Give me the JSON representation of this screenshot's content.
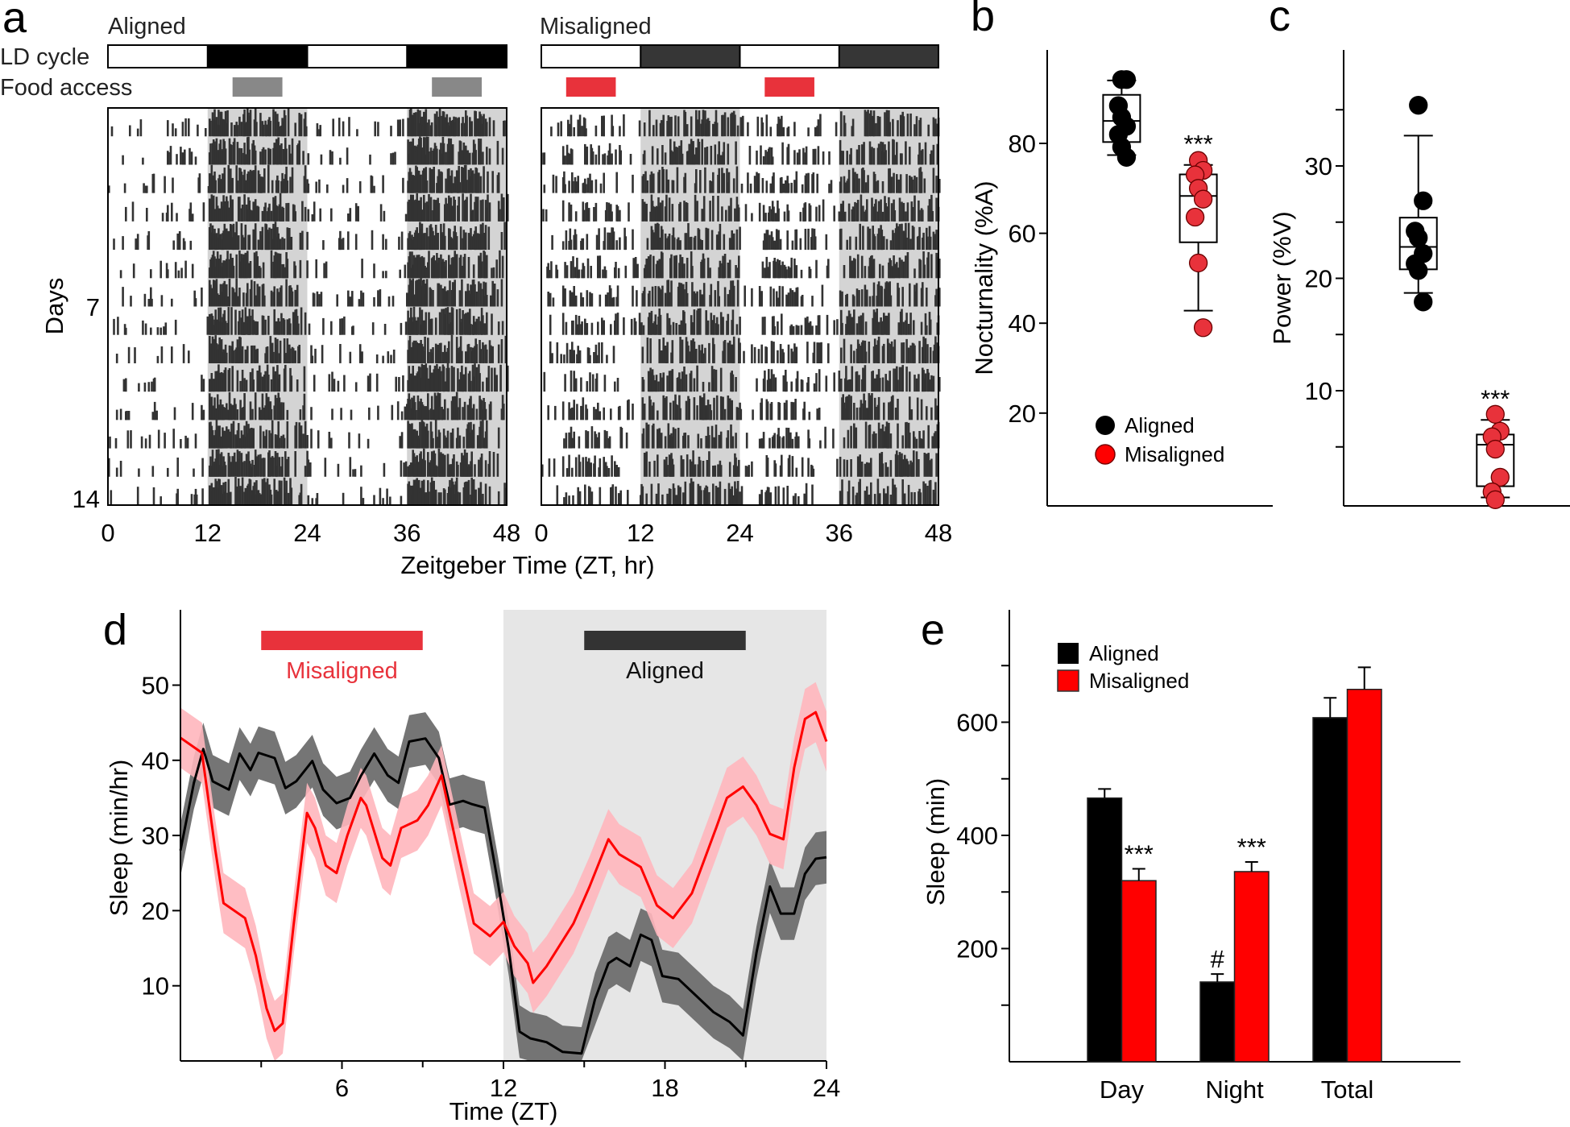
{
  "figure": {
    "panel_letters": [
      "a",
      "b",
      "c",
      "d",
      "e"
    ]
  },
  "colors": {
    "aligned": "#000000",
    "misaligned": "#ff0000",
    "misaligned_marker": "#e8323b",
    "aligned_band": "#6e6e6e",
    "misaligned_band": "#ffb6bd",
    "dark_phase_shade": "#d4d4d4",
    "night_shade": "#e6e6e6",
    "food_aligned": "#888888",
    "food_misaligned": "#e8323b",
    "ld_dark_aligned": "#000000",
    "ld_dark_misaligned": "#363636"
  },
  "chart_data": [
    {
      "id": "a",
      "type": "heatmap",
      "subtype": "double-plotted actogram",
      "row_labels": {
        "ld": "LD cycle",
        "food": "Food access"
      },
      "xlabel": "Zeitgeber Time (ZT, hr)",
      "ylabel": "Days",
      "x_ticks": [
        0,
        12,
        24,
        36,
        48
      ],
      "y_ticks": [
        7,
        14
      ],
      "days": 14,
      "panels": [
        {
          "name": "Aligned",
          "x_range": [
            0,
            48
          ],
          "ld_dark_hours": [
            [
              12,
              24
            ],
            [
              36,
              48
            ]
          ],
          "food_access_hours": [
            [
              15,
              21
            ],
            [
              39,
              45
            ]
          ],
          "activity_concentrated": "dark phase"
        },
        {
          "name": "Misaligned",
          "x_range": [
            0,
            48
          ],
          "ld_dark_hours": [
            [
              12,
              24
            ],
            [
              36,
              48
            ]
          ],
          "food_access_hours": [
            [
              3,
              9
            ],
            [
              27,
              33
            ]
          ],
          "activity_concentrated": "spread across light and dark phase"
        }
      ]
    },
    {
      "id": "b",
      "type": "scatter",
      "subtype": "box plot with points",
      "ylabel": "Nocturnality (%A)",
      "ylim": [
        0,
        100
      ],
      "y_ticks": [
        20,
        40,
        60,
        80
      ],
      "legend": [
        "Aligned",
        "Misaligned"
      ],
      "legend_position": "bottom-center",
      "groups": [
        {
          "name": "Aligned",
          "points": [
            94.2,
            94.2,
            88.4,
            85.8,
            83.8,
            82,
            79.2,
            76.9
          ],
          "box": {
            "whisker_low": 77.4,
            "q1": 80.3,
            "median": 85,
            "q3": 90.8,
            "whisker_high": 94
          },
          "annotation": ""
        },
        {
          "name": "Misaligned",
          "points": [
            76.2,
            74,
            73,
            70,
            67.6,
            63.6,
            53.4,
            39
          ],
          "box": {
            "whisker_low": 42.8,
            "q1": 58,
            "median": 68.3,
            "q3": 73.1,
            "whisker_high": 75.2
          },
          "annotation": "***"
        }
      ]
    },
    {
      "id": "c",
      "type": "scatter",
      "subtype": "box plot with points",
      "ylabel": "Power (%V)",
      "ylim": [
        0,
        37
      ],
      "y_ticks": [
        10,
        20,
        30
      ],
      "y_minor_ticks": [
        5,
        15,
        25,
        35
      ],
      "groups": [
        {
          "name": "Aligned",
          "points": [
            35.4,
            26.9,
            24.2,
            23.6,
            22.2,
            21.3,
            20.7,
            17.9
          ],
          "box": {
            "whisker_low": 18.7,
            "q1": 20.8,
            "median": 22.8,
            "q3": 25.4,
            "whisker_high": 32.7
          },
          "annotation": ""
        },
        {
          "name": "Misaligned",
          "points": [
            7.9,
            6.4,
            5.9,
            4.8,
            2.3,
            1.0,
            0.3
          ],
          "box": {
            "whisker_low": 0.5,
            "q1": 1.5,
            "median": 5.2,
            "q3": 6.1,
            "whisker_high": 7.4
          },
          "annotation": "***"
        }
      ]
    },
    {
      "id": "d",
      "type": "line",
      "xlabel": "Time (ZT)",
      "ylabel": "Sleep (min/hr)",
      "xlim": [
        0,
        24
      ],
      "ylim": [
        0,
        57
      ],
      "x_ticks": [
        6,
        12,
        18,
        24
      ],
      "x_minor_ticks": [
        3,
        9,
        15,
        21
      ],
      "y_ticks": [
        10,
        20,
        30,
        40,
        50
      ],
      "shaded_region": {
        "from": 12,
        "to": 24,
        "meaning": "dark phase"
      },
      "annotations": [
        {
          "label": "Misaligned",
          "from": 3,
          "to": 9,
          "color": "misaligned_marker"
        },
        {
          "label": "Aligned",
          "from": 15,
          "to": 21,
          "color": "#333333"
        }
      ],
      "series": [
        {
          "name": "Aligned",
          "band_halfwidth": 3.5,
          "points": [
            [
              0,
              28
            ],
            [
              0.5,
              37
            ],
            [
              0.85,
              41.5
            ],
            [
              1.2,
              37.2
            ],
            [
              1.8,
              36.1
            ],
            [
              2.2,
              40.9
            ],
            [
              2.6,
              38.7
            ],
            [
              2.9,
              41
            ],
            [
              3.5,
              40.3
            ],
            [
              3.9,
              36.3
            ],
            [
              4.3,
              37.2
            ],
            [
              4.9,
              39.9
            ],
            [
              5.3,
              36.1
            ],
            [
              5.8,
              34.3
            ],
            [
              6.3,
              35
            ],
            [
              6.7,
              37.9
            ],
            [
              7.2,
              40.9
            ],
            [
              7.7,
              38
            ],
            [
              8.1,
              37
            ],
            [
              8.5,
              42.5
            ],
            [
              9.1,
              42.9
            ],
            [
              9.6,
              40.3
            ],
            [
              10,
              34.1
            ],
            [
              10.5,
              34.6
            ],
            [
              10.8,
              34.2
            ],
            [
              11.3,
              33.7
            ],
            [
              11.8,
              23.6
            ],
            [
              12.2,
              14.8
            ],
            [
              12.6,
              3.9
            ],
            [
              13,
              3
            ],
            [
              13.6,
              2.5
            ],
            [
              14.2,
              1.2
            ],
            [
              14.9,
              1
            ],
            [
              15.4,
              8.2
            ],
            [
              15.9,
              13
            ],
            [
              16.2,
              13.7
            ],
            [
              16.7,
              12.6
            ],
            [
              17.1,
              16.8
            ],
            [
              17.5,
              16.1
            ],
            [
              17.9,
              11.3
            ],
            [
              18.5,
              10.9
            ],
            [
              19.3,
              8.2
            ],
            [
              19.8,
              6.5
            ],
            [
              20.4,
              5.2
            ],
            [
              20.9,
              3.4
            ],
            [
              21.4,
              14.4
            ],
            [
              21.9,
              23.2
            ],
            [
              22.3,
              19.6
            ],
            [
              22.8,
              19.6
            ],
            [
              23.2,
              24.9
            ],
            [
              23.6,
              26.9
            ],
            [
              24,
              27.1
            ]
          ]
        },
        {
          "name": "Misaligned",
          "band_halfwidth": 4,
          "points": [
            [
              0,
              43
            ],
            [
              0.8,
              41
            ],
            [
              1.3,
              28
            ],
            [
              1.6,
              21
            ],
            [
              2.4,
              19
            ],
            [
              2.8,
              14
            ],
            [
              3.2,
              7
            ],
            [
              3.5,
              4
            ],
            [
              3.8,
              5
            ],
            [
              4.2,
              18
            ],
            [
              4.7,
              33
            ],
            [
              5,
              31
            ],
            [
              5.4,
              26
            ],
            [
              5.8,
              25
            ],
            [
              6.2,
              30
            ],
            [
              6.7,
              35
            ],
            [
              6.9,
              34
            ],
            [
              7.5,
              27
            ],
            [
              7.8,
              26
            ],
            [
              8.2,
              31
            ],
            [
              8.8,
              32
            ],
            [
              9.2,
              34
            ],
            [
              9.7,
              38
            ],
            [
              10.3,
              28
            ],
            [
              10.9,
              18.3
            ],
            [
              11.5,
              16.6
            ],
            [
              12,
              18.5
            ],
            [
              12.4,
              15.3
            ],
            [
              12.9,
              13
            ],
            [
              13.1,
              10.4
            ],
            [
              13.6,
              12.6
            ],
            [
              14.6,
              18.3
            ],
            [
              15.2,
              23.2
            ],
            [
              15.9,
              29.5
            ],
            [
              16.3,
              27.5
            ],
            [
              17.1,
              25.8
            ],
            [
              17.7,
              20.7
            ],
            [
              18.3,
              19
            ],
            [
              19,
              22.3
            ],
            [
              19.9,
              31
            ],
            [
              20.3,
              35
            ],
            [
              20.9,
              36.5
            ],
            [
              21.4,
              34
            ],
            [
              21.9,
              30.2
            ],
            [
              22.4,
              29.5
            ],
            [
              22.8,
              39
            ],
            [
              23.2,
              45.5
            ],
            [
              23.6,
              46.4
            ],
            [
              24,
              42.5
            ]
          ]
        }
      ]
    },
    {
      "id": "e",
      "type": "bar",
      "ylabel": "Sleep (min)",
      "ylim": [
        0,
        800
      ],
      "y_ticks": [
        200,
        400,
        600
      ],
      "y_minor_ticks": [
        100,
        300,
        500,
        700
      ],
      "categories": [
        "Day",
        "Night",
        "Total"
      ],
      "legend": [
        "Aligned",
        "Misaligned"
      ],
      "legend_position": "top-left",
      "series": [
        {
          "name": "Aligned",
          "values": [
            466,
            141,
            608
          ],
          "errors": [
            16,
            14,
            35
          ],
          "annotations": [
            "",
            "#",
            ""
          ]
        },
        {
          "name": "Misaligned",
          "values": [
            320,
            336,
            658
          ],
          "errors": [
            21,
            17,
            39
          ],
          "annotations": [
            "***",
            "***",
            ""
          ]
        }
      ]
    }
  ]
}
